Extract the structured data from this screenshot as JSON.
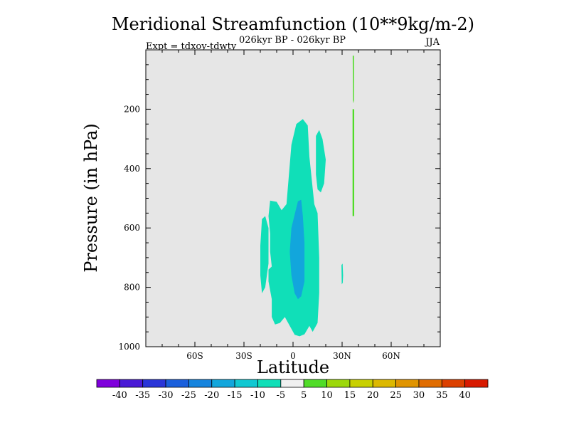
{
  "chart_data": {
    "type": "heatmap",
    "title": "Meridional Streamfunction (10**9kg/m-2)",
    "subtitle": "026kyr BP - 026kyr BP",
    "left_label": "Expt = tdxoy-tdwty",
    "right_label": "JJA",
    "xlabel": "Latitude",
    "ylabel": "Pressure (in hPa)",
    "xlim": [
      -90,
      90
    ],
    "ylim": [
      1000,
      0
    ],
    "x_ticks": [
      {
        "value": -60,
        "label": "60S"
      },
      {
        "value": -30,
        "label": "30S"
      },
      {
        "value": 0,
        "label": "0"
      },
      {
        "value": 30,
        "label": "30N"
      },
      {
        "value": 60,
        "label": "60N"
      }
    ],
    "y_ticks": [
      {
        "value": 200,
        "label": "200"
      },
      {
        "value": 400,
        "label": "400"
      },
      {
        "value": 600,
        "label": "600"
      },
      {
        "value": 800,
        "label": "800"
      },
      {
        "value": 1000,
        "label": "1000"
      }
    ],
    "background_color": "#e6e6e6",
    "colorbar": {
      "levels": [
        "-40",
        "-35",
        "-30",
        "-25",
        "-20",
        "-15",
        "-10",
        "-5",
        "5",
        "10",
        "15",
        "20",
        "25",
        "30",
        "35",
        "40"
      ],
      "colors": [
        "#7f00dc",
        "#4a1ad6",
        "#2a35d8",
        "#1a5fdc",
        "#1584de",
        "#12a6dc",
        "#10c8d2",
        "#10dfb8",
        "#f0f0f0",
        "#50dc28",
        "#9cd80a",
        "#c8d000",
        "#dcb800",
        "#e09400",
        "#e06c00",
        "#dc4000",
        "#d81a00"
      ]
    },
    "contours": [
      {
        "level": "-10 to -5",
        "color": "#10dfb8",
        "points": [
          [
            -14,
            508
          ],
          [
            -10,
            512
          ],
          [
            -7,
            540
          ],
          [
            -4,
            520
          ],
          [
            -1,
            320
          ],
          [
            2,
            250
          ],
          [
            6,
            233
          ],
          [
            9,
            255
          ],
          [
            10,
            360
          ],
          [
            13,
            520
          ],
          [
            15,
            550
          ],
          [
            16,
            700
          ],
          [
            16,
            820
          ],
          [
            15,
            920
          ],
          [
            12,
            950
          ],
          [
            10,
            930
          ],
          [
            7,
            958
          ],
          [
            4,
            965
          ],
          [
            1,
            960
          ],
          [
            -2,
            930
          ],
          [
            -5,
            900
          ],
          [
            -8,
            920
          ],
          [
            -11,
            925
          ],
          [
            -13,
            900
          ],
          [
            -13,
            840
          ],
          [
            -15,
            780
          ],
          [
            -15,
            740
          ],
          [
            -13,
            730
          ],
          [
            -14,
            680
          ],
          [
            -14,
            620
          ],
          [
            -15,
            560
          ]
        ]
      },
      {
        "level": "-10 to -5",
        "color": "#10dfb8",
        "points": [
          [
            -19,
            570
          ],
          [
            -17,
            560
          ],
          [
            -15,
            600
          ],
          [
            -15,
            720
          ],
          [
            -17,
            800
          ],
          [
            -19,
            820
          ],
          [
            -20,
            760
          ],
          [
            -20,
            660
          ]
        ]
      },
      {
        "level": "-10 to -5",
        "color": "#10dfb8",
        "points": [
          [
            14,
            290
          ],
          [
            16,
            270
          ],
          [
            18,
            300
          ],
          [
            20,
            370
          ],
          [
            19,
            450
          ],
          [
            17,
            480
          ],
          [
            15,
            470
          ],
          [
            14,
            420
          ],
          [
            14,
            360
          ]
        ]
      },
      {
        "level": "-10 to -5",
        "color": "#10dfb8",
        "points": [
          [
            29.6,
            725
          ],
          [
            30.3,
            720
          ],
          [
            30.6,
            760
          ],
          [
            30.4,
            785
          ],
          [
            29.8,
            790
          ]
        ]
      },
      {
        "level": "-15 to -10",
        "color": "#12a6dc",
        "points": [
          [
            -1,
            600
          ],
          [
            1,
            555
          ],
          [
            3,
            510
          ],
          [
            5,
            505
          ],
          [
            6,
            560
          ],
          [
            7,
            650
          ],
          [
            7,
            780
          ],
          [
            5,
            830
          ],
          [
            3,
            840
          ],
          [
            1,
            820
          ],
          [
            -1,
            760
          ],
          [
            -2,
            680
          ]
        ]
      },
      {
        "level": "5 to 10",
        "color": "#50dc28",
        "points": [
          [
            36.5,
            20
          ],
          [
            37.2,
            20
          ],
          [
            37.2,
            170
          ],
          [
            36.9,
            180
          ],
          [
            36.6,
            170
          ]
        ]
      },
      {
        "level": "5 to 10",
        "color": "#50dc28",
        "points": [
          [
            36.4,
            200
          ],
          [
            37.4,
            200
          ],
          [
            37.4,
            560
          ],
          [
            36.4,
            560
          ]
        ]
      }
    ]
  }
}
